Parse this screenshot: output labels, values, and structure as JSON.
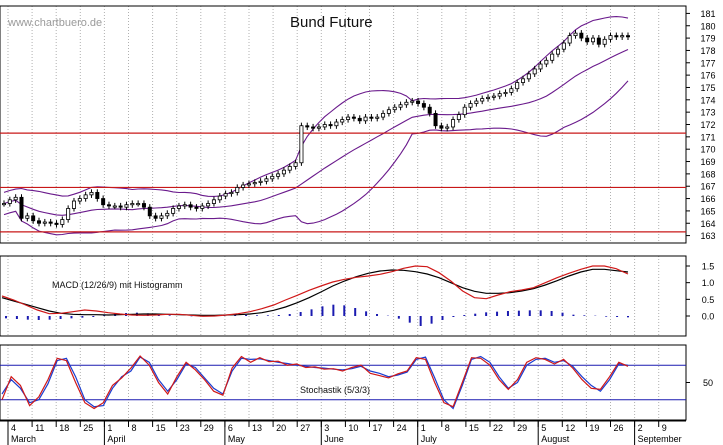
{
  "watermark": "www.chartbuero.de",
  "chart_data": [
    {
      "type": "candlestick",
      "title": "Bund Future",
      "ylim": [
        162.4,
        181.6
      ],
      "ytick_labels": [
        "181",
        "180",
        "179",
        "178",
        "177",
        "176",
        "175",
        "174",
        "173",
        "172",
        "171",
        "170",
        "169",
        "168",
        "167",
        "166",
        "165",
        "164",
        "163"
      ],
      "ytick_values": [
        181,
        180,
        179,
        178,
        177,
        176,
        175,
        174,
        173,
        172,
        171,
        170,
        169,
        168,
        167,
        166,
        165,
        164,
        163
      ],
      "horizontal_lines": [
        171.3,
        166.9,
        163.3
      ],
      "overlay": "Bollinger bands",
      "grid": "vertical dotted",
      "close": [
        165.6,
        165.9,
        166.1,
        164.4,
        164.6,
        164.2,
        164.0,
        164.1,
        164.0,
        163.9,
        164.3,
        165.2,
        165.8,
        166.0,
        166.3,
        166.5,
        166.0,
        165.5,
        165.4,
        165.4,
        165.3,
        165.5,
        165.6,
        165.6,
        165.3,
        164.6,
        164.4,
        164.6,
        164.8,
        165.2,
        165.4,
        165.5,
        165.3,
        165.2,
        165.4,
        165.6,
        165.9,
        166.2,
        166.4,
        166.5,
        166.9,
        167.1,
        167.2,
        167.3,
        167.4,
        167.6,
        167.8,
        168.0,
        168.3,
        168.6,
        168.9,
        171.9,
        171.8,
        171.7,
        171.8,
        172.0,
        171.9,
        172.2,
        172.4,
        172.6,
        172.5,
        172.3,
        172.6,
        172.5,
        172.6,
        172.9,
        173.2,
        173.4,
        173.6,
        173.8,
        173.9,
        173.7,
        173.4,
        172.9,
        171.9,
        171.7,
        171.8,
        172.4,
        172.8,
        173.4,
        173.7,
        173.9,
        174.1,
        174.2,
        174.3,
        174.5,
        174.6,
        174.9,
        175.4,
        175.7,
        176.1,
        176.5,
        176.9,
        177.2,
        177.7,
        178.1,
        178.6,
        179.2,
        179.4,
        179.0,
        178.7,
        179.0,
        178.5,
        178.9,
        179.2,
        179.1,
        179.2,
        179.1
      ]
    },
    {
      "type": "line",
      "title": "MACD (12/26/9) mit Histogramm",
      "ylim": [
        -0.6,
        1.8
      ],
      "ytick_labels": [
        "1.5",
        "1.0",
        "0.5",
        "0.0"
      ],
      "ytick_values": [
        1.5,
        1.0,
        0.5,
        0.0
      ],
      "series": [
        {
          "values": [
            0.55,
            0.45,
            0.35,
            0.25,
            0.15,
            0.08,
            0.05,
            0.04,
            0.04,
            0.03,
            0.04,
            0.05,
            0.06,
            0.06,
            0.05,
            0.04,
            0.03,
            0.02,
            0.02,
            0.03,
            0.04,
            0.06,
            0.1,
            0.17,
            0.27,
            0.4,
            0.55,
            0.72,
            0.9,
            1.05,
            1.18,
            1.28,
            1.35,
            1.38,
            1.37,
            1.33,
            1.26,
            1.15,
            1.0,
            0.85,
            0.74,
            0.68,
            0.68,
            0.7,
            0.75,
            0.82,
            0.93,
            1.06,
            1.2,
            1.32,
            1.4,
            1.4,
            1.36,
            1.32
          ]
        },
        {
          "values": [
            0.6,
            0.48,
            0.33,
            0.18,
            0.07,
            0.08,
            0.13,
            0.18,
            0.15,
            0.1,
            0.06,
            0.03,
            0.02,
            0.03,
            0.05,
            0.05,
            0.02,
            -0.01,
            0.0,
            0.03,
            0.07,
            0.13,
            0.22,
            0.33,
            0.48,
            0.62,
            0.77,
            0.9,
            1.02,
            1.1,
            1.16,
            1.2,
            1.25,
            1.33,
            1.43,
            1.5,
            1.48,
            1.3,
            1.05,
            0.75,
            0.55,
            0.52,
            0.63,
            0.73,
            0.78,
            0.85,
            1.0,
            1.15,
            1.28,
            1.4,
            1.5,
            1.5,
            1.42,
            1.26
          ]
        }
      ],
      "histogram": [
        -0.07,
        -0.09,
        -0.11,
        -0.12,
        -0.11,
        -0.09,
        -0.07,
        -0.05,
        -0.03,
        0.02,
        0.06,
        0.09,
        0.1,
        0.08,
        0.05,
        0.02,
        0.0,
        -0.01,
        0.0,
        0.01,
        0.02,
        0.03,
        0.03,
        0.02,
        0.02,
        0.03,
        0.06,
        0.12,
        0.2,
        0.29,
        0.34,
        0.32,
        0.24,
        0.14,
        0.06,
        0.01,
        -0.08,
        -0.2,
        -0.3,
        -0.23,
        -0.12,
        -0.03,
        0.03,
        0.07,
        0.11,
        0.13,
        0.15,
        0.16,
        0.17,
        0.17,
        0.15,
        0.1,
        0.04,
        0.02,
        0.01,
        -0.02,
        -0.03,
        -0.04
      ]
    },
    {
      "type": "line",
      "title": "Stochastik (5/3/3)",
      "ylim": [
        -15,
        115
      ],
      "ytick_labels": [
        "50"
      ],
      "ytick_values": [
        50
      ],
      "horizontal_lines": [
        80,
        20
      ],
      "series": [
        {
          "values": [
            30,
            55,
            40,
            15,
            20,
            48,
            88,
            92,
            60,
            20,
            8,
            10,
            40,
            60,
            70,
            94,
            85,
            55,
            35,
            55,
            82,
            76,
            58,
            40,
            30,
            70,
            92,
            90,
            91,
            88,
            85,
            83,
            80,
            78,
            76,
            75,
            73,
            72,
            74,
            78,
            70,
            66,
            60,
            63,
            68,
            90,
            94,
            58,
            20,
            5,
            45,
            90,
            95,
            85,
            60,
            40,
            50,
            80,
            90,
            92,
            85,
            88,
            78,
            60,
            45,
            35,
            55,
            82,
            80
          ]
        },
        {
          "values": [
            20,
            60,
            45,
            10,
            25,
            55,
            92,
            88,
            50,
            15,
            5,
            15,
            45,
            58,
            75,
            96,
            80,
            50,
            30,
            60,
            85,
            72,
            55,
            35,
            28,
            75,
            95,
            85,
            93,
            86,
            87,
            80,
            82,
            76,
            77,
            73,
            74,
            70,
            76,
            80,
            66,
            62,
            58,
            65,
            70,
            93,
            90,
            50,
            15,
            8,
            50,
            93,
            92,
            80,
            55,
            38,
            55,
            85,
            93,
            90,
            82,
            90,
            75,
            55,
            40,
            38,
            60,
            85,
            78
          ]
        }
      ]
    }
  ],
  "x_axis": {
    "day_labels": [
      "4",
      "11",
      "18",
      "25",
      "1",
      "8",
      "15",
      "23",
      "29",
      "6",
      "13",
      "20",
      "27",
      "3",
      "10",
      "17",
      "24",
      "1",
      "8",
      "15",
      "22",
      "29",
      "5",
      "12",
      "19",
      "26",
      "2",
      "9"
    ],
    "month_labels": [
      "March",
      "April",
      "May",
      "June",
      "July",
      "August",
      "September"
    ]
  }
}
